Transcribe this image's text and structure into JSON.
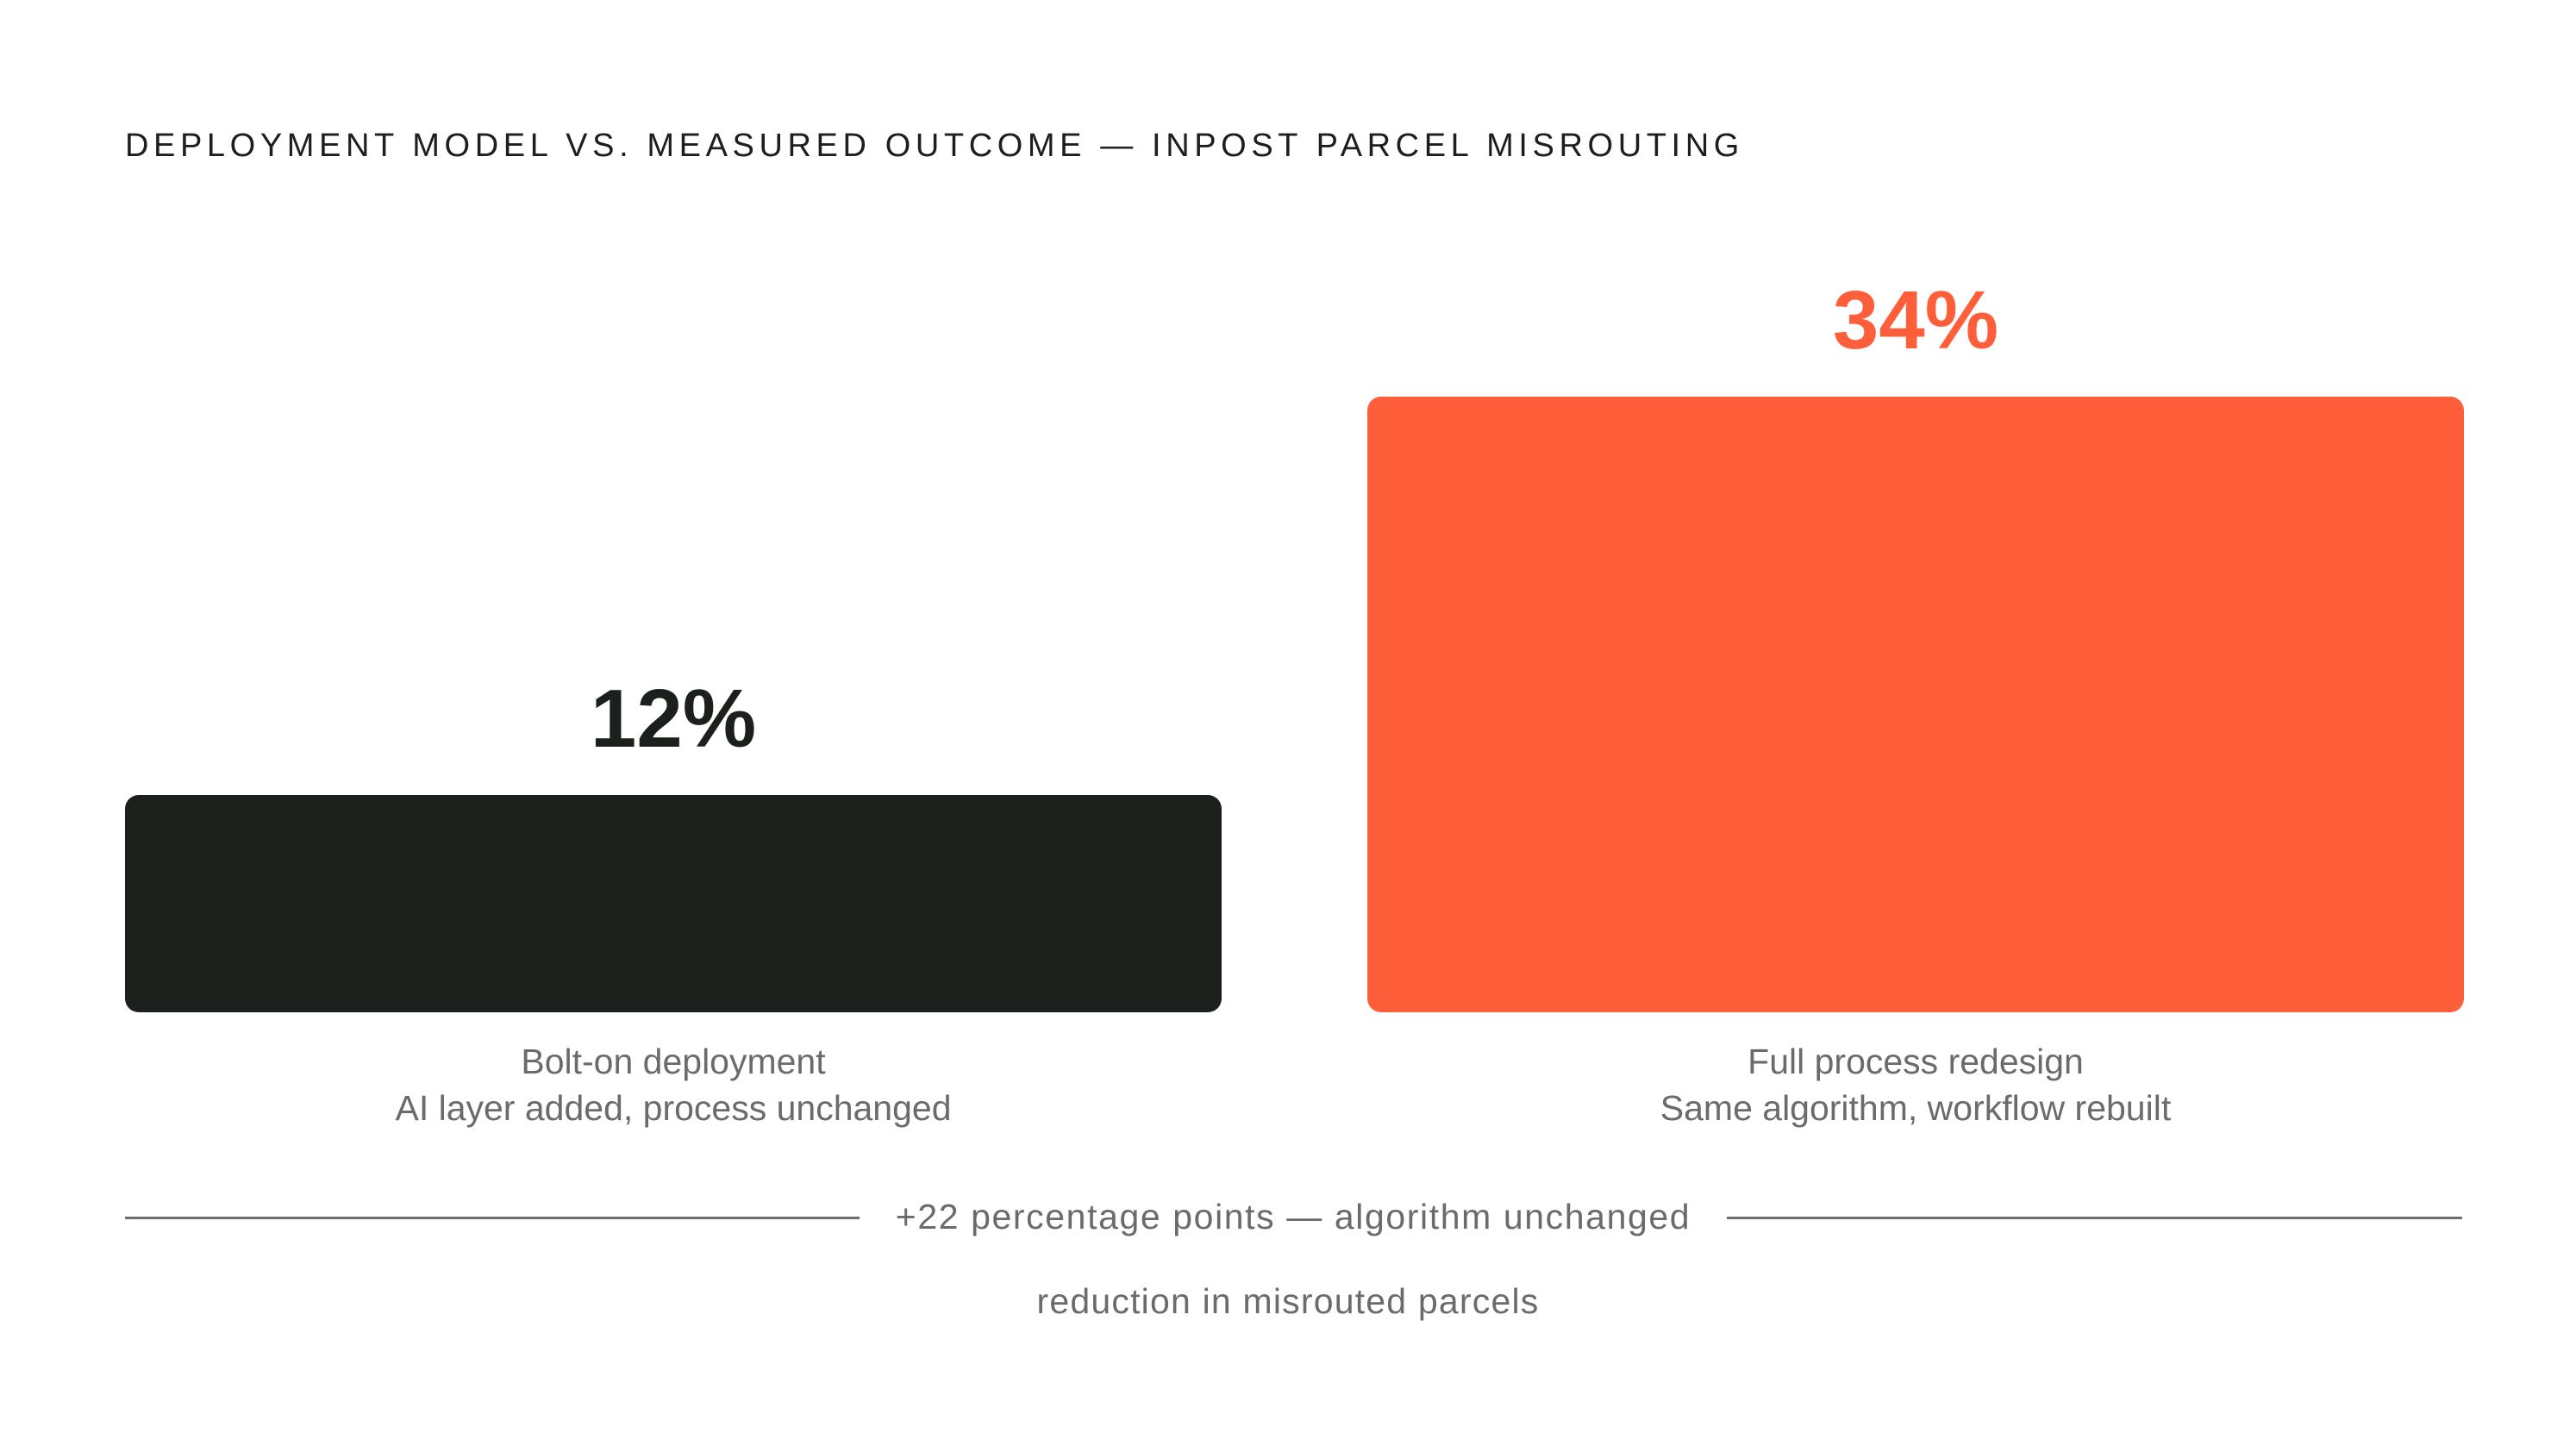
{
  "title": "DEPLOYMENT MODEL VS. MEASURED OUTCOME — INPOST PARCEL MISROUTING",
  "chart_data": {
    "type": "bar",
    "categories": [
      "Bolt-on deployment",
      "Full process redesign"
    ],
    "sublabels": [
      "AI layer added, process unchanged",
      "Same algorithm, workflow rebuilt"
    ],
    "values": [
      12,
      34
    ],
    "value_labels": [
      "12%",
      "34%"
    ],
    "colors": [
      "#1c201c",
      "#ff5e3a"
    ],
    "label_colors": [
      "#1c201c",
      "#ff5e3a"
    ],
    "ylim": [
      0,
      34
    ],
    "grid": false,
    "title": "DEPLOYMENT MODEL VS. MEASURED OUTCOME — INPOST PARCEL MISROUTING"
  },
  "difference_label": "+22 percentage points — algorithm unchanged",
  "footnote": "reduction in misrouted parcels"
}
